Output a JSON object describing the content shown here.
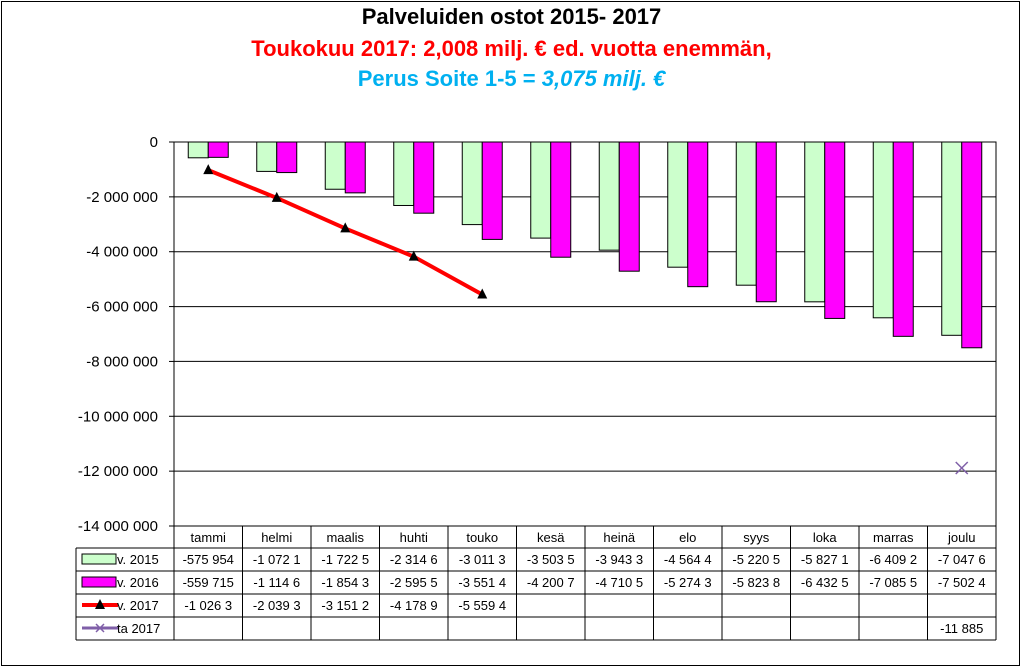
{
  "title": "Palveluiden ostot 2015- 2017",
  "subtitle1": "Toukokuu 2017: 2,008 milj. € ed. vuotta enemmän,",
  "subtitle2_plain": "Perus Soite 1-5 = ",
  "subtitle2_italic": "3,075 milj. €",
  "colors": {
    "subtitle1": "#ff0000",
    "subtitle2": "#00b0f0",
    "v2015": "#ccffcc",
    "v2016": "#ff00ff",
    "v2017": "#ff0000",
    "ta2017": "#7f5fa8"
  },
  "chart_data": {
    "type": "bar",
    "categories": [
      "tammi",
      "helmi",
      "maalis",
      "huhti",
      "touko",
      "kesä",
      "heinä",
      "elo",
      "syys",
      "loka",
      "marras",
      "joulu"
    ],
    "ylim": [
      -14000000,
      0
    ],
    "yticks": [
      0,
      -2000000,
      -4000000,
      -6000000,
      -8000000,
      -10000000,
      -12000000,
      -14000000
    ],
    "ytick_labels": [
      "0",
      "-2 000 000",
      "-4 000 000",
      "-6 000 000",
      "-8 000 000",
      "-10 000 000",
      "-12 000 000",
      "-14 000 000"
    ],
    "grid": true,
    "legend": "data-table",
    "series": [
      {
        "name": "v. 2015",
        "kind": "bar",
        "values": [
          -575954,
          -1072100,
          -1722500,
          -2314600,
          -3011300,
          -3503500,
          -3943300,
          -4564400,
          -5220500,
          -5827100,
          -6409200,
          -7047600
        ],
        "table_labels": [
          "-575 954",
          "-1 072 1",
          "-1 722 5",
          "-2 314 6",
          "-3 011 3",
          "-3 503 5",
          "-3 943 3",
          "-4 564 4",
          "-5 220 5",
          "-5 827 1",
          "-6 409 2",
          "-7 047 6"
        ]
      },
      {
        "name": "v. 2016",
        "kind": "bar",
        "values": [
          -559715,
          -1114600,
          -1854300,
          -2595500,
          -3551400,
          -4200700,
          -4710500,
          -5274300,
          -5823800,
          -6432500,
          -7085500,
          -7502400
        ],
        "table_labels": [
          "-559 715",
          "-1 114 6",
          "-1 854 3",
          "-2 595 5",
          "-3 551 4",
          "-4 200 7",
          "-4 710 5",
          "-5 274 3",
          "-5 823 8",
          "-6 432 5",
          "-7 085 5",
          "-7 502 4"
        ]
      },
      {
        "name": "v. 2017",
        "kind": "line",
        "values": [
          -1026300,
          -2039300,
          -3151200,
          -4178900,
          -5559400,
          null,
          null,
          null,
          null,
          null,
          null,
          null
        ],
        "table_labels": [
          "-1 026 3",
          "-2 039 3",
          "-3 151 2",
          "-4 178 9",
          "-5 559 4",
          "",
          "",
          "",
          "",
          "",
          "",
          ""
        ]
      },
      {
        "name": "ta 2017",
        "kind": "marker",
        "values": [
          null,
          null,
          null,
          null,
          null,
          null,
          null,
          null,
          null,
          null,
          null,
          -11885000
        ],
        "table_labels": [
          "",
          "",
          "",
          "",
          "",
          "",
          "",
          "",
          "",
          "",
          "",
          "-11 885"
        ]
      }
    ]
  }
}
